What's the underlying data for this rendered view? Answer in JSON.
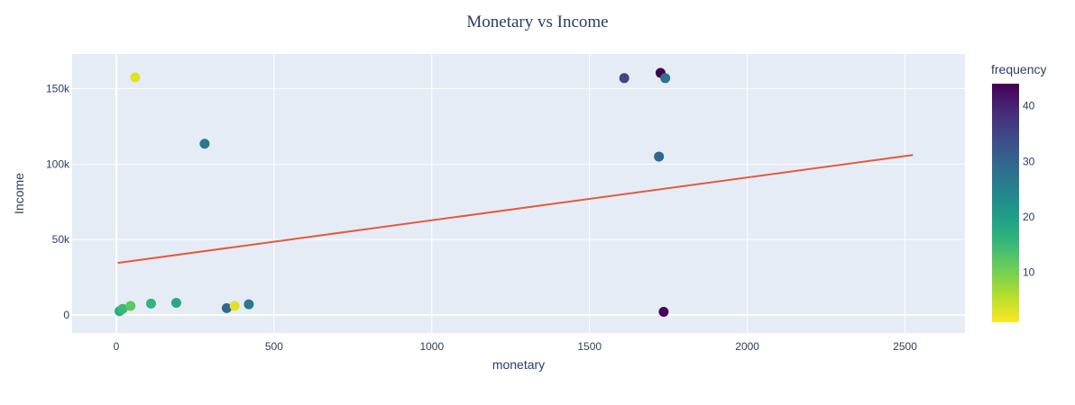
{
  "chart_data": {
    "type": "scatter",
    "title": "Monetary vs Income",
    "xlabel": "monetary",
    "ylabel": "Income",
    "xlim": [
      -140,
      2690
    ],
    "ylim": [
      -12000,
      173000
    ],
    "x_ticks": [
      0,
      500,
      1000,
      1500,
      2000,
      2500
    ],
    "x_tick_labels": [
      "0",
      "500",
      "1000",
      "1500",
      "2000",
      "2500"
    ],
    "y_ticks": [
      0,
      50000,
      100000,
      150000
    ],
    "y_tick_labels": [
      "0",
      "50k",
      "100k",
      "150k"
    ],
    "grid": true,
    "colorbar": {
      "title": "frequency",
      "range": [
        1,
        44
      ],
      "ticks": [
        10,
        20,
        30,
        40
      ],
      "tick_labels": [
        "10",
        "20",
        "30",
        "40"
      ],
      "colorscale": [
        "#440154",
        "#482878",
        "#3e4989",
        "#31688e",
        "#26828e",
        "#1f9e89",
        "#35b779",
        "#6ece58",
        "#b5de2b",
        "#fde725"
      ]
    },
    "colors": {
      "plot_bg": "#e5ecf6",
      "trend": "#e45a3c",
      "text": "#2a3f5f"
    },
    "trendline": {
      "x": [
        5,
        2525
      ],
      "y": [
        34500,
        106000
      ]
    },
    "series": [
      {
        "x": [
          60,
          280,
          1610,
          1725,
          1740,
          1720,
          1735,
          350,
          375,
          420,
          10,
          20,
          45,
          110,
          190
        ],
        "y": [
          157500,
          113500,
          157000,
          160500,
          157000,
          105000,
          2000,
          4500,
          6000,
          7000,
          2500,
          4000,
          6000,
          7500,
          8000
        ],
        "frequency": [
          3,
          27,
          35,
          44,
          28,
          30,
          44,
          30,
          3,
          27,
          17,
          15,
          12,
          16,
          18
        ]
      }
    ]
  }
}
